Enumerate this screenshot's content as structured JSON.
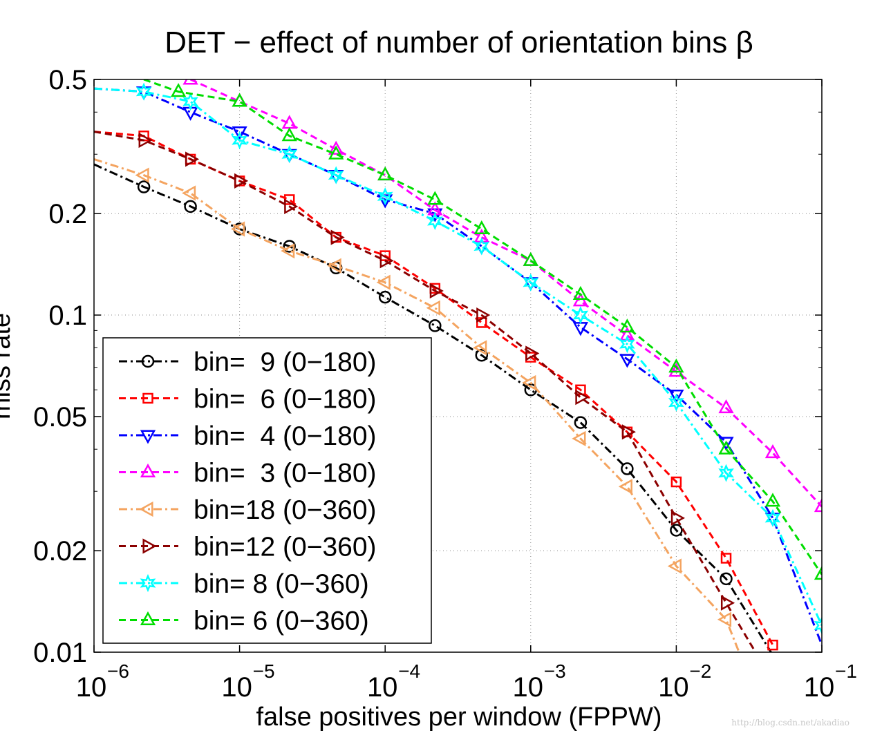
{
  "chart_data": {
    "type": "line",
    "title": "DET − effect of number of orientation bins β",
    "xlabel": "false positives per window (FPPW)",
    "ylabel": "miss rate",
    "xscale": "log",
    "yscale": "log",
    "xlim": [
      1e-06,
      0.1
    ],
    "ylim": [
      0.01,
      0.5
    ],
    "grid": true,
    "legend_position": "lower-left",
    "xticks": [
      {
        "value": 1e-06,
        "base": "10",
        "exp": "−6"
      },
      {
        "value": 1e-05,
        "base": "10",
        "exp": "−5"
      },
      {
        "value": 0.0001,
        "base": "10",
        "exp": "−4"
      },
      {
        "value": 0.001,
        "base": "10",
        "exp": "−3"
      },
      {
        "value": 0.01,
        "base": "10",
        "exp": "−2"
      },
      {
        "value": 0.1,
        "base": "10",
        "exp": "−1"
      }
    ],
    "yticks": [
      {
        "value": 0.01,
        "label": "0.01"
      },
      {
        "value": 0.02,
        "label": "0.02"
      },
      {
        "value": 0.05,
        "label": "0.05"
      },
      {
        "value": 0.1,
        "label": "0.1"
      },
      {
        "value": 0.2,
        "label": "0.2"
      },
      {
        "value": 0.5,
        "label": "0.5"
      }
    ],
    "series": [
      {
        "name": "bin=  9 (0−180)",
        "color": "#000000",
        "marker": "circle",
        "dash": "12 5 3 5",
        "x": [
          1e-06,
          2.2e-06,
          4.6e-06,
          1e-05,
          2.2e-05,
          4.6e-05,
          0.0001,
          0.00022,
          0.00046,
          0.001,
          0.0022,
          0.0046,
          0.01,
          0.022,
          0.046
        ],
        "y": [
          0.28,
          0.24,
          0.21,
          0.18,
          0.16,
          0.138,
          0.113,
          0.093,
          0.076,
          0.06,
          0.048,
          0.035,
          0.023,
          0.0165,
          0.0098
        ],
        "markers": [
          1,
          2,
          3,
          4,
          5,
          6,
          7,
          8,
          9,
          10,
          11,
          12,
          13
        ]
      },
      {
        "name": "bin=  6 (0−180)",
        "color": "#ff0000",
        "marker": "square",
        "dash": "10 6",
        "x": [
          1e-06,
          2.2e-06,
          4.6e-06,
          1e-05,
          2.2e-05,
          4.6e-05,
          0.0001,
          0.00022,
          0.00046,
          0.001,
          0.0022,
          0.0046,
          0.01,
          0.022,
          0.046
        ],
        "y": [
          0.35,
          0.34,
          0.29,
          0.25,
          0.22,
          0.17,
          0.15,
          0.12,
          0.095,
          0.075,
          0.06,
          0.045,
          0.032,
          0.019,
          0.0105
        ],
        "markers": [
          1,
          2,
          3,
          4,
          5,
          6,
          7,
          8,
          9,
          10,
          11,
          12,
          13,
          14
        ]
      },
      {
        "name": "bin=  4 (0−180)",
        "color": "#0000ff",
        "marker": "triangle-down",
        "dash": "12 5 3 5",
        "x": [
          1e-06,
          2.2e-06,
          4.6e-06,
          1e-05,
          2.2e-05,
          4.6e-05,
          0.0001,
          0.00022,
          0.00046,
          0.001,
          0.0022,
          0.0046,
          0.01,
          0.022,
          0.046,
          0.1
        ],
        "y": [
          0.47,
          0.46,
          0.4,
          0.35,
          0.3,
          0.26,
          0.22,
          0.2,
          0.16,
          0.125,
          0.092,
          0.074,
          0.058,
          0.042,
          0.025,
          0.0105
        ],
        "markers": [
          1,
          2,
          3,
          4,
          5,
          6,
          7,
          8,
          9,
          10,
          11,
          12,
          13,
          14
        ]
      },
      {
        "name": "bin=  3 (0−180)",
        "color": "#ff00ff",
        "marker": "triangle-up",
        "dash": "10 6",
        "x": [
          4.6e-06,
          1e-05,
          2.2e-05,
          4.6e-05,
          0.0001,
          0.00022,
          0.00046,
          0.001,
          0.0022,
          0.0046,
          0.01,
          0.022,
          0.046,
          0.1
        ],
        "y": [
          0.5,
          0.43,
          0.37,
          0.31,
          0.26,
          0.205,
          0.17,
          0.145,
          0.11,
          0.087,
          0.068,
          0.053,
          0.039,
          0.027
        ],
        "markers": [
          0,
          1,
          2,
          3,
          4,
          5,
          6,
          7,
          8,
          9,
          10,
          11,
          12,
          13
        ]
      },
      {
        "name": "bin=18 (0−360)",
        "color": "#f4a460",
        "marker": "triangle-left",
        "dash": "12 5 3 5",
        "x": [
          1e-06,
          2.2e-06,
          4.6e-06,
          1e-05,
          2.2e-05,
          4.6e-05,
          0.0001,
          0.00022,
          0.00046,
          0.001,
          0.0022,
          0.0046,
          0.01,
          0.022,
          0.027
        ],
        "y": [
          0.29,
          0.26,
          0.23,
          0.18,
          0.155,
          0.14,
          0.125,
          0.105,
          0.08,
          0.063,
          0.043,
          0.031,
          0.018,
          0.0125,
          0.01
        ],
        "markers": [
          1,
          2,
          3,
          4,
          5,
          6,
          7,
          8,
          9,
          10,
          11,
          12,
          13
        ]
      },
      {
        "name": "bin=12 (0−360)",
        "color": "#8b0000",
        "marker": "triangle-right",
        "dash": "10 6",
        "x": [
          1e-06,
          2.2e-06,
          4.6e-06,
          1e-05,
          2.2e-05,
          4.6e-05,
          0.0001,
          0.00022,
          0.00046,
          0.001,
          0.0022,
          0.0046,
          0.01,
          0.022,
          0.035
        ],
        "y": [
          0.35,
          0.33,
          0.29,
          0.25,
          0.21,
          0.17,
          0.145,
          0.118,
          0.1,
          0.077,
          0.057,
          0.045,
          0.025,
          0.014,
          0.01
        ],
        "markers": [
          1,
          2,
          3,
          4,
          5,
          6,
          7,
          8,
          9,
          10,
          11,
          12,
          13
        ]
      },
      {
        "name": "bin= 8 (0−360)",
        "color": "#00ffff",
        "marker": "star",
        "dash": "12 5 3 5",
        "x": [
          1e-06,
          2.2e-06,
          4.6e-06,
          1e-05,
          2.2e-05,
          4.6e-05,
          0.0001,
          0.00022,
          0.00046,
          0.001,
          0.0022,
          0.0046,
          0.01,
          0.022,
          0.046,
          0.1
        ],
        "y": [
          0.47,
          0.46,
          0.43,
          0.33,
          0.3,
          0.26,
          0.225,
          0.19,
          0.16,
          0.125,
          0.1,
          0.082,
          0.055,
          0.034,
          0.025,
          0.012
        ],
        "markers": [
          1,
          2,
          3,
          4,
          5,
          6,
          7,
          8,
          9,
          10,
          11,
          12,
          13,
          14,
          15
        ]
      },
      {
        "name": "bin= 6 (0−360)",
        "color": "#00dd00",
        "marker": "triangle-up",
        "dash": "10 6",
        "x": [
          2.2e-06,
          3.8e-06,
          1e-05,
          2.2e-05,
          4.6e-05,
          0.0001,
          0.00022,
          0.00046,
          0.001,
          0.0022,
          0.0046,
          0.01,
          0.022,
          0.046,
          0.1
        ],
        "y": [
          0.5,
          0.46,
          0.43,
          0.34,
          0.3,
          0.26,
          0.22,
          0.18,
          0.145,
          0.115,
          0.092,
          0.07,
          0.04,
          0.028,
          0.017
        ],
        "markers": [
          1,
          2,
          3,
          4,
          5,
          6,
          7,
          8,
          9,
          10,
          11,
          12,
          13,
          14
        ]
      }
    ]
  },
  "watermark": "http://blog.csdn.net/akadiao"
}
